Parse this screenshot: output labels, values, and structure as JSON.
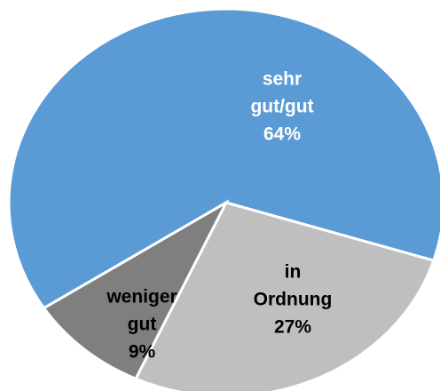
{
  "chart_data": {
    "type": "pie",
    "categories": [
      "sehr gut/gut",
      "in Ordnung",
      "weniger gut"
    ],
    "values": [
      64,
      27,
      9
    ],
    "value_labels": [
      "64%",
      "27%",
      "9%"
    ],
    "colors": [
      "#5b9bd5",
      "#bfbfbf",
      "#7f7f7f"
    ],
    "label_colors": [
      "#ffffff",
      "#000000",
      "#000000"
    ]
  }
}
